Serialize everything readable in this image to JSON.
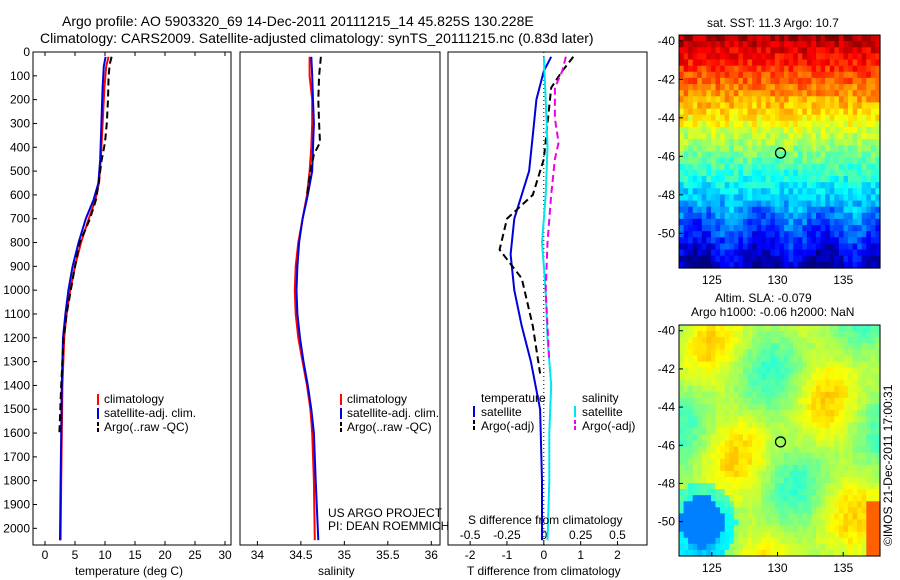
{
  "header": {
    "title_line1": "Argo profile: AO 5903320_69 14-Dec-2011 20111215_14 45.825S 130.228E",
    "title_line2": "Climatology: CARS2009. Satellite-adjusted climatology: synTS_20111215.nc (0.83d later)"
  },
  "footer": {
    "project": "US ARGO PROJECT",
    "pi": "PI: DEAN ROEMMICH",
    "stamp": "©IMOS 21-Dec-2011 17:00:31"
  },
  "colors": {
    "climatology": "#ff0000",
    "satellite": "#0000dd",
    "argo": "#000000",
    "salinity_satellite": "#00e5ee",
    "salinity_argo": "#ee00ee"
  },
  "chart_data": [
    {
      "id": "temperature",
      "type": "line",
      "xlabel": "temperature (deg C)",
      "ylabel": "",
      "xlim": [
        -2,
        31
      ],
      "ylim": [
        2070,
        0
      ],
      "xticks": [
        0,
        5,
        10,
        15,
        20,
        25,
        30
      ],
      "yticks": [
        0,
        100,
        200,
        300,
        400,
        500,
        600,
        700,
        800,
        900,
        1000,
        1100,
        1200,
        1300,
        1400,
        1500,
        1600,
        1700,
        1800,
        1900,
        2000
      ],
      "legend": [
        "climatology",
        "satellite-adj. clim.",
        "Argo(..raw -QC)"
      ],
      "series": [
        {
          "name": "climatology",
          "style": "solid",
          "color": "#ff0000",
          "points": [
            [
              10.6,
              20
            ],
            [
              10.2,
              60
            ],
            [
              9.9,
              150
            ],
            [
              9.6,
              300
            ],
            [
              9.3,
              450
            ],
            [
              9.0,
              550
            ],
            [
              8.4,
              620
            ],
            [
              7.3,
              700
            ],
            [
              6.0,
              800
            ],
            [
              5.0,
              900
            ],
            [
              4.2,
              1000
            ],
            [
              3.6,
              1100
            ],
            [
              3.2,
              1200
            ],
            [
              2.9,
              1400
            ],
            [
              2.8,
              1600
            ],
            [
              2.7,
              1800
            ],
            [
              2.6,
              2050
            ]
          ]
        },
        {
          "name": "satellite-adj. clim.",
          "style": "solid",
          "color": "#0000dd",
          "points": [
            [
              10.1,
              20
            ],
            [
              9.8,
              60
            ],
            [
              9.6,
              150
            ],
            [
              9.4,
              300
            ],
            [
              9.2,
              450
            ],
            [
              8.9,
              550
            ],
            [
              8.1,
              620
            ],
            [
              6.8,
              700
            ],
            [
              5.6,
              800
            ],
            [
              4.6,
              900
            ],
            [
              3.9,
              1000
            ],
            [
              3.4,
              1100
            ],
            [
              3.0,
              1200
            ],
            [
              2.8,
              1400
            ],
            [
              2.7,
              1600
            ],
            [
              2.6,
              1800
            ],
            [
              2.5,
              2050
            ]
          ]
        },
        {
          "name": "Argo(..raw -QC)",
          "style": "dashed",
          "color": "#000000",
          "points": [
            [
              11.1,
              20
            ],
            [
              10.8,
              50
            ],
            [
              10.6,
              100
            ],
            [
              10.5,
              200
            ],
            [
              10.3,
              300
            ],
            [
              10.0,
              380
            ],
            [
              9.4,
              460
            ],
            [
              9.0,
              540
            ],
            [
              8.5,
              620
            ],
            [
              7.5,
              700
            ],
            [
              5.8,
              800
            ],
            [
              5.0,
              900
            ],
            [
              4.3,
              1000
            ],
            [
              3.6,
              1100
            ],
            [
              3.1,
              1200
            ],
            [
              2.7,
              1400
            ],
            [
              2.4,
              1600
            ]
          ]
        }
      ]
    },
    {
      "id": "salinity",
      "type": "line",
      "xlabel": "salinity",
      "ylabel": "",
      "xlim": [
        33.8,
        36.1
      ],
      "ylim": [
        2070,
        0
      ],
      "xticks": [
        34,
        34.5,
        35,
        35.5,
        36
      ],
      "legend": [
        "climatology",
        "satellite-adj. clim.",
        "Argo(..raw -QC)"
      ],
      "series": [
        {
          "name": "climatology",
          "style": "solid",
          "color": "#ff0000",
          "points": [
            [
              34.6,
              20
            ],
            [
              34.6,
              100
            ],
            [
              34.63,
              200
            ],
            [
              34.63,
              300
            ],
            [
              34.62,
              400
            ],
            [
              34.6,
              500
            ],
            [
              34.57,
              600
            ],
            [
              34.52,
              700
            ],
            [
              34.47,
              800
            ],
            [
              34.44,
              900
            ],
            [
              34.43,
              1000
            ],
            [
              34.44,
              1100
            ],
            [
              34.47,
              1200
            ],
            [
              34.52,
              1300
            ],
            [
              34.57,
              1400
            ],
            [
              34.61,
              1500
            ],
            [
              34.63,
              1600
            ],
            [
              34.65,
              1800
            ],
            [
              34.66,
              2050
            ]
          ]
        },
        {
          "name": "satellite-adj. clim.",
          "style": "solid",
          "color": "#0000dd",
          "points": [
            [
              34.62,
              20
            ],
            [
              34.63,
              100
            ],
            [
              34.64,
              200
            ],
            [
              34.65,
              300
            ],
            [
              34.64,
              400
            ],
            [
              34.63,
              500
            ],
            [
              34.58,
              600
            ],
            [
              34.52,
              700
            ],
            [
              34.48,
              800
            ],
            [
              34.46,
              900
            ],
            [
              34.45,
              1000
            ],
            [
              34.46,
              1100
            ],
            [
              34.49,
              1200
            ],
            [
              34.53,
              1300
            ],
            [
              34.58,
              1400
            ],
            [
              34.62,
              1500
            ],
            [
              34.65,
              1600
            ],
            [
              34.67,
              1800
            ],
            [
              34.7,
              2050
            ]
          ]
        },
        {
          "name": "Argo(..raw -QC)",
          "style": "dashed",
          "color": "#000000",
          "points": [
            [
              34.73,
              20
            ],
            [
              34.71,
              100
            ],
            [
              34.7,
              200
            ],
            [
              34.71,
              300
            ],
            [
              34.72,
              380
            ],
            [
              34.65,
              430
            ],
            [
              34.61,
              500
            ],
            [
              34.57,
              600
            ]
          ]
        }
      ]
    },
    {
      "id": "difference",
      "type": "line",
      "xlabel": "T difference from climatology",
      "xlabel_top": "S difference from climatology",
      "xlim_T": [
        -2.6,
        2.8
      ],
      "xticks_T": [
        -2,
        -1,
        0,
        1,
        2
      ],
      "xticks_S": [
        -0.5,
        -0.25,
        0,
        0.25,
        0.5
      ],
      "ylim": [
        2070,
        0
      ],
      "legend_temperature": {
        "title": "temperature",
        "items": [
          "satellite",
          "Argo(-adj)"
        ]
      },
      "legend_salinity": {
        "title": "salinity",
        "items": [
          "satellite",
          "Argo(-adj)"
        ]
      },
      "series": [
        {
          "name": "temperature satellite",
          "style": "solid",
          "color": "#0000dd",
          "units": "T",
          "points": [
            [
              0.2,
              20
            ],
            [
              0.0,
              80
            ],
            [
              -0.2,
              200
            ],
            [
              -0.3,
              350
            ],
            [
              -0.4,
              500
            ],
            [
              -0.6,
              600
            ],
            [
              -0.8,
              700
            ],
            [
              -0.9,
              850
            ],
            [
              -0.8,
              1000
            ],
            [
              -0.6,
              1150
            ],
            [
              -0.35,
              1300
            ],
            [
              -0.1,
              1500
            ],
            [
              -0.05,
              1800
            ],
            [
              -0.05,
              2050
            ]
          ]
        },
        {
          "name": "temperature Argo(-adj)",
          "style": "dashed",
          "color": "#000000",
          "units": "T",
          "points": [
            [
              0.8,
              20
            ],
            [
              0.5,
              80
            ],
            [
              0.2,
              150
            ],
            [
              0.1,
              300
            ],
            [
              0.0,
              450
            ],
            [
              -0.3,
              600
            ],
            [
              -1.0,
              700
            ],
            [
              -1.2,
              830
            ],
            [
              -0.6,
              950
            ],
            [
              -0.3,
              1150
            ],
            [
              -0.1,
              1350
            ]
          ]
        },
        {
          "name": "salinity satellite",
          "style": "solid",
          "color": "#00e5ee",
          "units": "T",
          "points": [
            [
              0.0,
              20
            ],
            [
              0.05,
              200
            ],
            [
              0.1,
              400
            ],
            [
              0.05,
              600
            ],
            [
              -0.05,
              800
            ],
            [
              0.05,
              1000
            ],
            [
              0.1,
              1200
            ],
            [
              0.2,
              1400
            ],
            [
              0.15,
              1600
            ],
            [
              0.15,
              1800
            ],
            [
              0.1,
              2050
            ]
          ]
        },
        {
          "name": "salinity Argo(-adj)",
          "style": "dashed",
          "color": "#ee00ee",
          "units": "T",
          "points": [
            [
              0.6,
              20
            ],
            [
              0.5,
              80
            ],
            [
              0.3,
              150
            ],
            [
              0.3,
              280
            ],
            [
              0.4,
              380
            ],
            [
              0.3,
              450
            ],
            [
              0.2,
              600
            ],
            [
              0.1,
              800
            ],
            [
              0.05,
              1000
            ],
            [
              0.1,
              1150
            ],
            [
              0.15,
              1300
            ]
          ]
        }
      ]
    },
    {
      "id": "sst_map",
      "type": "heatmap",
      "title": "sat. SST: 11.3  Argo: 10.7",
      "xlim": [
        122.5,
        137.8
      ],
      "ylim": [
        -51.8,
        -39.7
      ],
      "xticks": [
        125,
        130,
        135
      ],
      "yticks": [
        -40,
        -42,
        -44,
        -46,
        -48,
        -50
      ],
      "marker": [
        130.228,
        -45.825
      ]
    },
    {
      "id": "sla_map",
      "type": "heatmap",
      "title_line1": "Altim. SLA: -0.079",
      "title_line2": "Argo h1000: -0.06  h2000: NaN",
      "xlim": [
        122.5,
        137.8
      ],
      "ylim": [
        -51.8,
        -39.7
      ],
      "xticks": [
        125,
        130,
        135
      ],
      "yticks": [
        -40,
        -42,
        -44,
        -46,
        -48,
        -50
      ],
      "marker": [
        130.228,
        -45.825
      ]
    }
  ]
}
